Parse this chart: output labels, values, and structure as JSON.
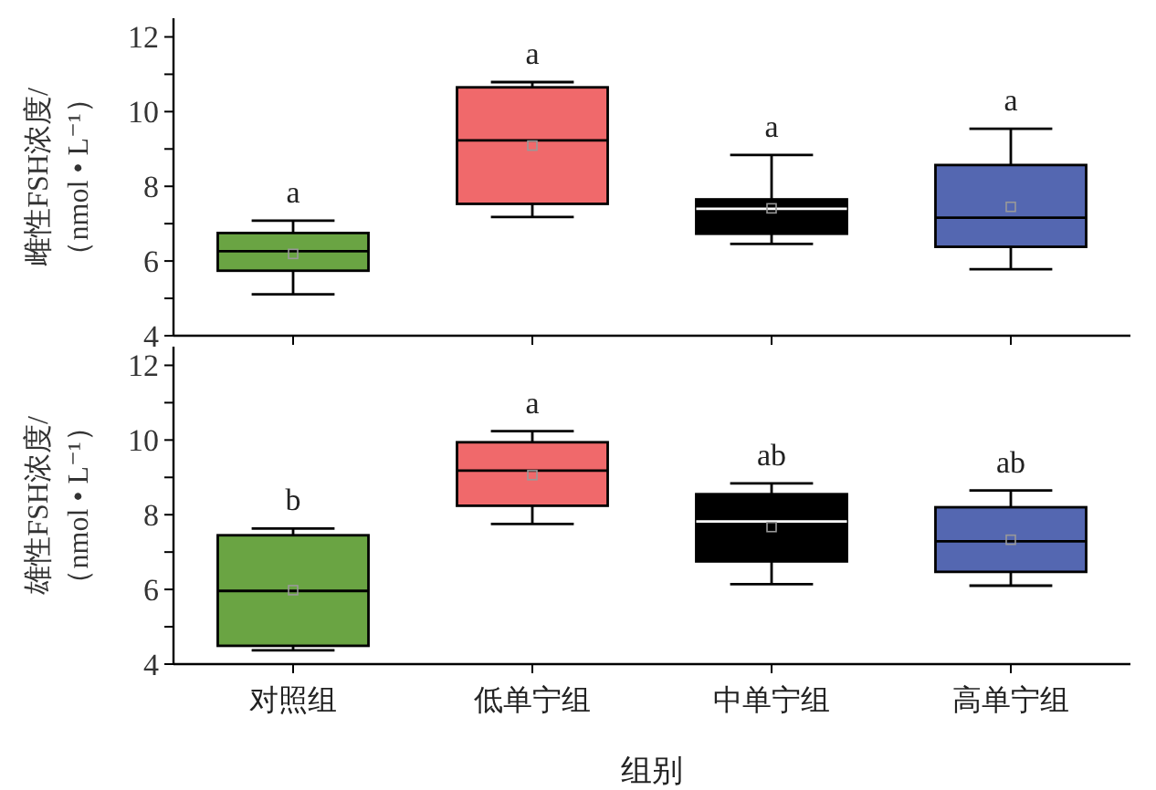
{
  "chart_data": [
    {
      "type": "box",
      "ylabel": "雌性FSH浓度/\n（nmol • L⁻¹）",
      "categories": [
        null,
        null,
        null,
        null
      ],
      "colors": [
        "#6aa443",
        "#f0696b",
        "#000000",
        "#5467b1"
      ],
      "boxes": [
        {
          "low": 5.11,
          "q1": 5.74,
          "median": 6.26,
          "q3": 6.75,
          "high": 7.08,
          "mean": 6.19
        },
        {
          "low": 7.18,
          "q1": 7.53,
          "median": 9.23,
          "q3": 10.65,
          "high": 10.79,
          "mean": 9.09
        },
        {
          "low": 6.46,
          "q1": 6.73,
          "median": 7.4,
          "q3": 7.65,
          "high": 8.84,
          "mean": 7.41
        },
        {
          "low": 5.78,
          "q1": 6.38,
          "median": 7.16,
          "q3": 8.57,
          "high": 9.54,
          "mean": 7.45
        }
      ],
      "ylim": [
        4,
        12.5
      ],
      "yticks": [
        4,
        {
          "value": 5,
          "label": null
        },
        6,
        {
          "value": 7,
          "label": null
        },
        8,
        {
          "value": 9,
          "label": null
        },
        10,
        {
          "value": 11,
          "label": null
        },
        12
      ],
      "tick_labels": "y",
      "annotations": [
        "a",
        "a",
        "a",
        "a"
      ]
    },
    {
      "type": "box",
      "ylabel": "雄性FSH浓度/\n（nmol • L⁻¹）",
      "xlabel": "组别",
      "categories": [
        "对照组",
        "低单宁组",
        "中单宁组",
        "高单宁组"
      ],
      "colors": [
        "#6aa443",
        "#f0696b",
        "#000000",
        "#5467b1"
      ],
      "boxes": [
        {
          "low": 4.37,
          "q1": 4.49,
          "median": 5.96,
          "q3": 7.45,
          "high": 7.63,
          "mean": 5.98
        },
        {
          "low": 7.75,
          "q1": 8.24,
          "median": 9.18,
          "q3": 9.94,
          "high": 10.24,
          "mean": 9.06
        },
        {
          "low": 6.14,
          "q1": 6.75,
          "median": 7.82,
          "q3": 8.55,
          "high": 8.84,
          "mean": 7.67
        },
        {
          "low": 6.1,
          "q1": 6.47,
          "median": 7.29,
          "q3": 8.2,
          "high": 8.65,
          "mean": 7.33
        }
      ],
      "ylim": [
        4,
        12.5
      ],
      "yticks": [
        4,
        {
          "value": 5,
          "label": null
        },
        6,
        {
          "value": 7,
          "label": null
        },
        8,
        {
          "value": 9,
          "label": null
        },
        10,
        {
          "value": 11,
          "label": null
        },
        12
      ],
      "annotations": [
        "b",
        "a",
        "ab",
        "ab"
      ]
    }
  ]
}
